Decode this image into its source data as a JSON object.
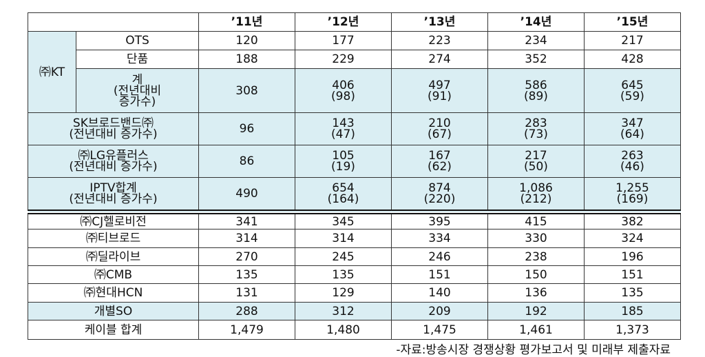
{
  "table": {
    "header": [
      "’11년",
      "’12년",
      "’13년",
      "’14년",
      "’15년"
    ],
    "kt": {
      "label": "㈜KT",
      "rows": [
        {
          "label": [
            "OTS"
          ],
          "cells": [
            [
              "120"
            ],
            [
              "177"
            ],
            [
              "223"
            ],
            [
              "234"
            ],
            [
              "217"
            ]
          ]
        },
        {
          "label": [
            "단품"
          ],
          "cells": [
            [
              "188"
            ],
            [
              "229"
            ],
            [
              "274"
            ],
            [
              "352"
            ],
            [
              "428"
            ]
          ]
        },
        {
          "label": [
            "계",
            "(전년대비",
            "증가수)"
          ],
          "cells": [
            [
              "308"
            ],
            [
              "406",
              "(98)"
            ],
            [
              "497",
              "(91)"
            ],
            [
              "586",
              "(89)"
            ],
            [
              "645",
              "(59)"
            ]
          ]
        }
      ]
    },
    "iptv_rows": [
      {
        "label": [
          "SK브로드밴드㈜",
          "(전년대비 증가수)"
        ],
        "cells": [
          [
            "96"
          ],
          [
            "143",
            "(47)"
          ],
          [
            "210",
            "(67)"
          ],
          [
            "283",
            "(73)"
          ],
          [
            "347",
            "(64)"
          ]
        ]
      },
      {
        "label": [
          "㈜LG유플러스",
          "(전년대비 증가수)"
        ],
        "cells": [
          [
            "86"
          ],
          [
            "105",
            "(19)"
          ],
          [
            "167",
            "(62)"
          ],
          [
            "217",
            "(50)"
          ],
          [
            "263",
            "(46)"
          ]
        ]
      },
      {
        "label": [
          "IPTV합계",
          "(전년대비 증가수)"
        ],
        "cells": [
          [
            "490"
          ],
          [
            "654",
            "(164)"
          ],
          [
            "874",
            "(220)"
          ],
          [
            "1,086",
            "(212)"
          ],
          [
            "1,255",
            "(169)"
          ]
        ]
      }
    ],
    "cable_rows": [
      {
        "label": [
          "㈜CJ헬로비전"
        ],
        "cells": [
          [
            "341"
          ],
          [
            "345"
          ],
          [
            "395"
          ],
          [
            "415"
          ],
          [
            "382"
          ]
        ]
      },
      {
        "label": [
          "㈜티브로드"
        ],
        "cells": [
          [
            "314"
          ],
          [
            "314"
          ],
          [
            "334"
          ],
          [
            "330"
          ],
          [
            "324"
          ]
        ]
      },
      {
        "label": [
          "㈜딜라이브"
        ],
        "cells": [
          [
            "270"
          ],
          [
            "245"
          ],
          [
            "246"
          ],
          [
            "238"
          ],
          [
            "196"
          ]
        ]
      },
      {
        "label": [
          "㈜CMB"
        ],
        "cells": [
          [
            "135"
          ],
          [
            "135"
          ],
          [
            "151"
          ],
          [
            "150"
          ],
          [
            "151"
          ]
        ]
      },
      {
        "label": [
          "㈜현대HCN"
        ],
        "cells": [
          [
            "131"
          ],
          [
            "129"
          ],
          [
            "140"
          ],
          [
            "136"
          ],
          [
            "135"
          ]
        ]
      },
      {
        "label": [
          "개별SO"
        ],
        "cells": [
          [
            "288"
          ],
          [
            "312"
          ],
          [
            "209"
          ],
          [
            "192"
          ],
          [
            "185"
          ]
        ]
      },
      {
        "label": [
          "케이블 합계"
        ],
        "cells": [
          [
            "1,479"
          ],
          [
            "1,480"
          ],
          [
            "1,475"
          ],
          [
            "1,461"
          ],
          [
            "1,373"
          ]
        ]
      }
    ]
  },
  "source": "-자료:방송시장 경쟁상황 평가보고서 및 미래부 제출자료"
}
